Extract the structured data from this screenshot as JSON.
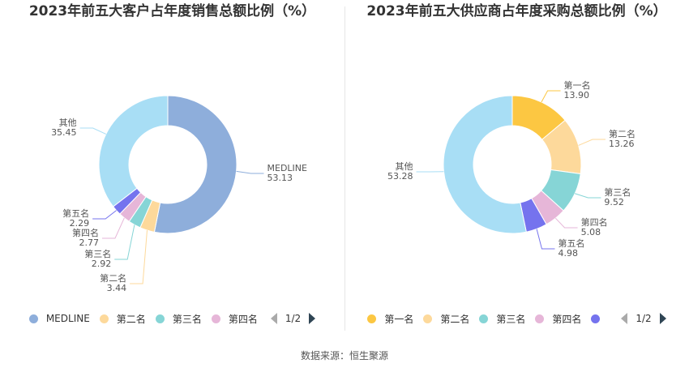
{
  "chart_data": [
    {
      "type": "pie",
      "title": "2023年前五大客户占年度销售总额比例（%）",
      "slices": [
        {
          "name": "MEDLINE",
          "value": 53.13,
          "label_name": "MEDLINE",
          "label_value": "53.13",
          "color": "#8eaedb"
        },
        {
          "name": "第二名",
          "value": 3.44,
          "label_name": "第二名",
          "label_value": "3.44",
          "color": "#fdd99b"
        },
        {
          "name": "第三名",
          "value": 2.92,
          "label_name": "第三名",
          "label_value": "2.92",
          "color": "#86d5d6"
        },
        {
          "name": "第四名",
          "value": 2.77,
          "label_name": "第四名",
          "label_value": "2.77",
          "color": "#e6b6d8"
        },
        {
          "name": "第五名",
          "value": 2.29,
          "label_name": "第五名",
          "label_value": "2.29",
          "color": "#7573ee"
        },
        {
          "name": "其他",
          "value": 35.45,
          "label_name": "其他",
          "label_value": "35.45",
          "color": "#a8def5"
        }
      ],
      "legend": {
        "items": [
          {
            "name": "MEDLINE",
            "color": "#8eaedb"
          },
          {
            "name": "第二名",
            "color": "#fdd99b"
          },
          {
            "name": "第三名",
            "color": "#86d5d6"
          },
          {
            "name": "第四名",
            "color": "#e6b6d8"
          }
        ],
        "page": "1/2",
        "placement": "bottom"
      }
    },
    {
      "type": "pie",
      "title": "2023年前五大供应商占年度采购总额比例（%）",
      "slices": [
        {
          "name": "第一名",
          "value": 13.9,
          "label_name": "第一名",
          "label_value": "13.90",
          "color": "#fcc742"
        },
        {
          "name": "第二名",
          "value": 13.26,
          "label_name": "第二名",
          "label_value": "13.26",
          "color": "#fdd99b"
        },
        {
          "name": "第三名",
          "value": 9.52,
          "label_name": "第三名",
          "label_value": "9.52",
          "color": "#86d5d6"
        },
        {
          "name": "第四名",
          "value": 5.08,
          "label_name": "第四名",
          "label_value": "5.08",
          "color": "#e6b6d8"
        },
        {
          "name": "第五名",
          "value": 4.98,
          "label_name": "第五名",
          "label_value": "4.98",
          "color": "#7573ee"
        },
        {
          "name": "其他",
          "value": 53.28,
          "label_name": "其他",
          "label_value": "53.28",
          "color": "#a8def5"
        }
      ],
      "legend": {
        "items": [
          {
            "name": "第一名",
            "color": "#fcc742"
          },
          {
            "name": "第二名",
            "color": "#fdd99b"
          },
          {
            "name": "第三名",
            "color": "#86d5d6"
          },
          {
            "name": "第四名",
            "color": "#e6b6d8"
          },
          {
            "name": "",
            "color": "#7573ee"
          }
        ],
        "page": "1/2",
        "placement": "bottom"
      }
    }
  ],
  "footer": {
    "source": "数据来源：恒生聚源"
  }
}
